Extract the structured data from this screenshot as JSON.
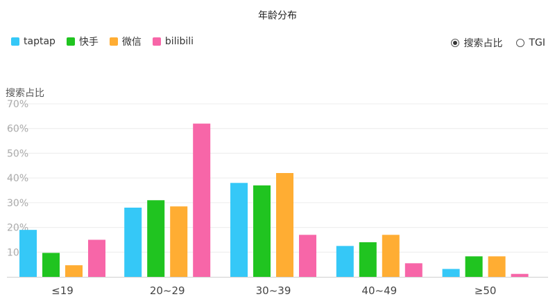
{
  "chart_data": {
    "type": "bar",
    "title": "年龄分布",
    "ylabel": "搜索占比",
    "xlabel": "",
    "categories": [
      "≤19",
      "20~29",
      "30~39",
      "40~49",
      "≥50"
    ],
    "series": [
      {
        "name": "taptap",
        "color": "#35c8f7",
        "values": [
          19,
          28,
          38,
          12.5,
          3.2
        ]
      },
      {
        "name": "快手",
        "color": "#20c420",
        "values": [
          9.7,
          31,
          37,
          14,
          8.3
        ]
      },
      {
        "name": "微信",
        "color": "#ffad33",
        "values": [
          4.7,
          28.5,
          42,
          17,
          8.3
        ]
      },
      {
        "name": "bilibili",
        "color": "#f766a8",
        "values": [
          15,
          62,
          17,
          5.5,
          1.2
        ]
      }
    ],
    "ylim": [
      0,
      70
    ],
    "yticks": [
      "10%",
      "20%",
      "30%",
      "40%",
      "50%",
      "60%",
      "70%"
    ],
    "grid": true,
    "legend_position": "top-left"
  },
  "metric_toggle": {
    "options": [
      {
        "label": "搜索占比",
        "checked": true
      },
      {
        "label": "TGI",
        "checked": false
      }
    ]
  }
}
